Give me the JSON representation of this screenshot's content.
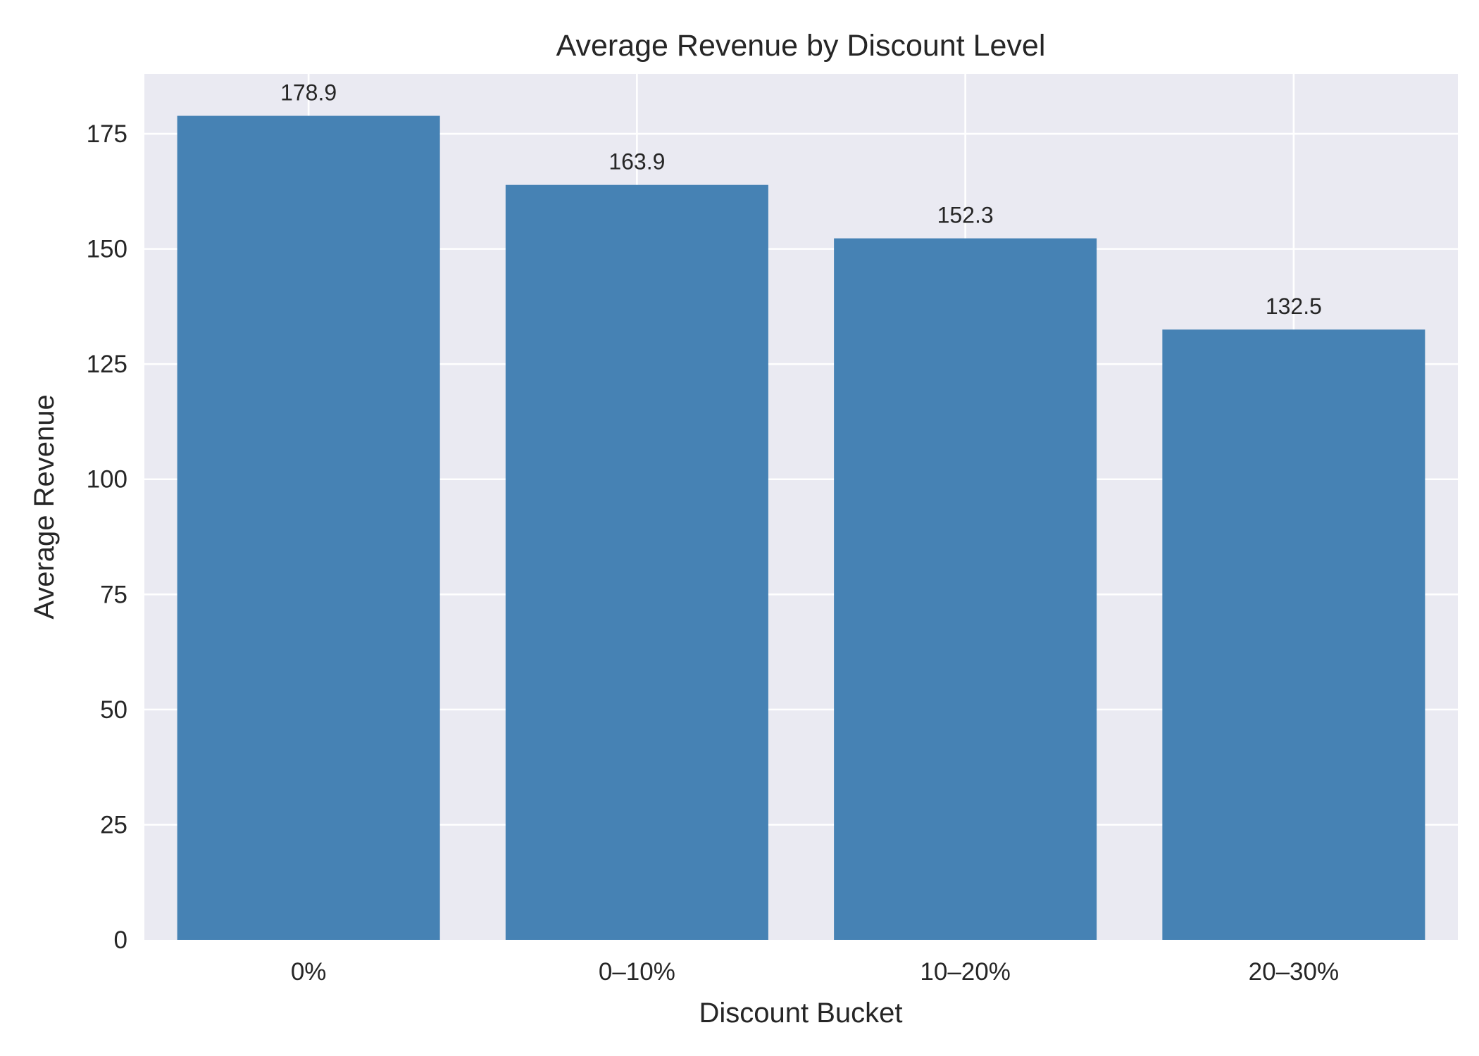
{
  "chart_data": {
    "type": "bar",
    "title": "Average Revenue by Discount Level",
    "xlabel": "Discount Bucket",
    "ylabel": "Average Revenue",
    "categories": [
      "0%",
      "0–10%",
      "10–20%",
      "20–30%"
    ],
    "values": [
      178.9,
      163.9,
      152.3,
      132.5
    ],
    "value_labels": [
      "178.9",
      "163.9",
      "152.3",
      "132.5"
    ],
    "ylim": [
      0,
      188
    ],
    "yticks": [
      0,
      25,
      50,
      75,
      100,
      125,
      150,
      175
    ],
    "ytick_labels": [
      "0",
      "25",
      "50",
      "75",
      "100",
      "125",
      "150",
      "175"
    ],
    "grid": true,
    "legend": "none",
    "colors": {
      "bar": "#4682b4",
      "plot_background": "#eaeaf2",
      "grid": "#ffffff",
      "text": "#262626"
    }
  }
}
